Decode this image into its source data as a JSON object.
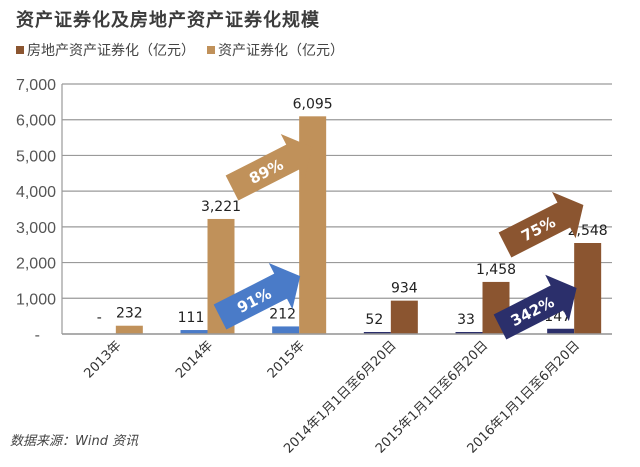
{
  "header": {
    "title": "资产证券化及房地产资产证券化规模"
  },
  "legend": [
    {
      "label": "房地产资产证券化（亿元）",
      "color": "#8B5530"
    },
    {
      "label": "资产证券化（亿元）",
      "color": "#C0915A"
    }
  ],
  "source": "数据来源：Wind 资讯",
  "chart_data": {
    "type": "bar",
    "title": "资产证券化及房地产资产证券化规模",
    "xlabel": "",
    "ylabel": "",
    "ylim": [
      0,
      7000
    ],
    "yticks": [
      "-",
      "1,000",
      "2,000",
      "3,000",
      "4,000",
      "5,000",
      "6,000",
      "7,000"
    ],
    "grid": true,
    "legend_position": "top-left",
    "categories": [
      "2013年",
      "2014年",
      "2015年",
      "2014年1月1日至6月20日",
      "2015年1月1日至6月20日",
      "2016年1月1日至6月20日"
    ],
    "series": [
      {
        "name": "房地产资产证券化（亿元）",
        "values": [
          0,
          111,
          212,
          52,
          33,
          147
        ],
        "labels": [
          "-",
          "111",
          "212",
          "52",
          "33",
          "147"
        ]
      },
      {
        "name": "资产证券化（亿元）",
        "values": [
          232,
          3221,
          6095,
          934,
          1458,
          2548
        ],
        "labels": [
          "232",
          "3,221",
          "6,095",
          "934",
          "1,458",
          "2,548"
        ]
      }
    ],
    "bar_colors": [
      [
        "#4A7BC8",
        "#C0915A"
      ],
      [
        "#4A7BC8",
        "#C0915A"
      ],
      [
        "#4A7BC8",
        "#C0915A"
      ],
      [
        "#2B2F6B",
        "#8B5530"
      ],
      [
        "#2B2F6B",
        "#8B5530"
      ],
      [
        "#2B2F6B",
        "#8B5530"
      ]
    ],
    "annotations": [
      {
        "text": "89%",
        "description": "资产证券化 2014→2015 growth",
        "color": "#C0915A"
      },
      {
        "text": "91%",
        "description": "房地产资产证券化 2014→2015 growth",
        "color": "#4A7BC8"
      },
      {
        "text": "75%",
        "description": "资产证券化 H1 2015→H1 2016 growth",
        "color": "#8B5530"
      },
      {
        "text": "342%",
        "description": "房地产资产证券化 H1 2015→H1 2016 growth",
        "color": "#2B2F6B"
      }
    ]
  }
}
